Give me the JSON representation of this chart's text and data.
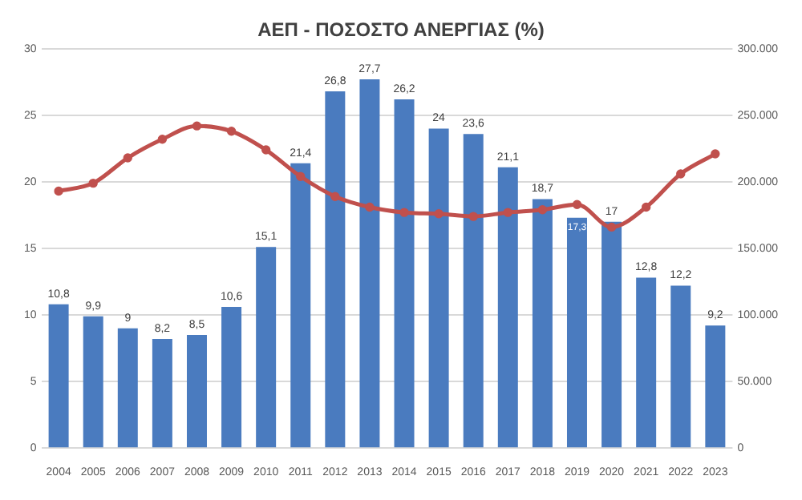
{
  "chart_data": {
    "type": "bar",
    "title": "ΑΕΠ - ΠΟΣΟΣΤΟ ΑΝΕΡΓΙΑΣ (%)",
    "categories": [
      "2004",
      "2005",
      "2006",
      "2007",
      "2008",
      "2009",
      "2010",
      "2011",
      "2012",
      "2013",
      "2014",
      "2015",
      "2016",
      "2017",
      "2018",
      "2019",
      "2020",
      "2021",
      "2022",
      "2023"
    ],
    "series": [
      {
        "color": "#4a7bbf",
        "values": [
          10.8,
          9.9,
          9,
          8.2,
          8.5,
          10.6,
          15.1,
          21.4,
          26.8,
          27.7,
          26.2,
          24,
          23.6,
          21.1,
          18.7,
          17.3,
          17,
          12.8,
          12.2,
          9.2
        ],
        "value_labels": [
          "10,8",
          "9,9",
          "9",
          "8,2",
          "8,5",
          "10,6",
          "15,1",
          "21,4",
          "26,8",
          "27,7",
          "26,2",
          "24",
          "23,6",
          "21,1",
          "18,7",
          "17,3",
          "17",
          "12,8",
          "12,2",
          "9,2"
        ]
      },
      {
        "type": "line",
        "axis": "y2",
        "color": "#c0504d",
        "marker": "circle",
        "values": [
          193000,
          199000,
          218000,
          232000,
          242000,
          238000,
          224000,
          204000,
          189000,
          181000,
          177000,
          176000,
          174000,
          177000,
          179000,
          183000,
          166000,
          181000,
          206000,
          221000
        ]
      }
    ],
    "ylim": [
      0,
      30
    ],
    "yticks": [
      0,
      5,
      10,
      15,
      20,
      25,
      30
    ],
    "y2lim": [
      0,
      300000
    ],
    "y2ticks": [
      {
        "value": 0,
        "label": "0"
      },
      {
        "value": 50000,
        "label": "50.000"
      },
      {
        "value": 100000,
        "label": "100.000"
      },
      {
        "value": 150000,
        "label": "150.000"
      },
      {
        "value": 200000,
        "label": "200.000"
      },
      {
        "value": 250000,
        "label": "250.000"
      },
      {
        "value": 300000,
        "label": "300.000"
      }
    ],
    "grid": "y",
    "legend": false
  }
}
